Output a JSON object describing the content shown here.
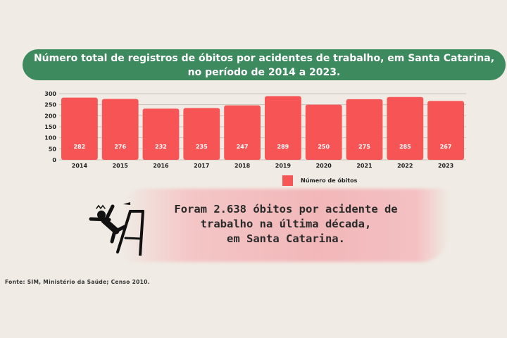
{
  "title_line1": "Número total de registros de óbitos por acidentes de trabalho, em Santa Catarina,",
  "title_line2": "no período de 2014 a 2023.",
  "chart_data": {
    "type": "bar",
    "categories": [
      "2014",
      "2015",
      "2016",
      "2017",
      "2018",
      "2019",
      "2020",
      "2021",
      "2022",
      "2023"
    ],
    "series": [
      {
        "name": "Número de óbitos",
        "values": [
          282,
          276,
          232,
          235,
          247,
          289,
          250,
          275,
          285,
          267
        ]
      }
    ],
    "yticks": [
      0,
      50,
      100,
      150,
      200,
      250,
      300
    ],
    "ylim": [
      0,
      300
    ],
    "grid": true,
    "legend": "bottom",
    "bar_color": "#f75555"
  },
  "message": {
    "line1": "Foram 2.638 óbitos por acidente de",
    "line2": "trabalho na última década,",
    "line3": "em Santa Catarina."
  },
  "source": "Fonte: SIM, Ministério da Saúde; Censo 2010.",
  "colors": {
    "background": "#f0ebe4",
    "banner": "#3d8a5f",
    "bar": "#f75555",
    "highlight": "#f2b7b9"
  }
}
